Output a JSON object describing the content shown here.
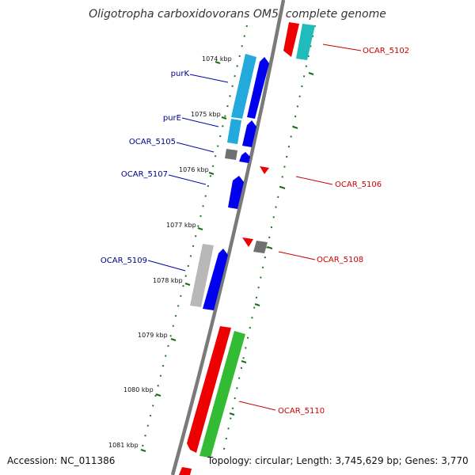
{
  "title": "Oligotropha carboxidovorans OM5, complete genome",
  "footer": {
    "accession_label": "Accession:",
    "accession": "NC_011386",
    "topology_text": "Topology: circular; Length: 3,745,629 bp; Genes: 3,770"
  },
  "kbp_labels": [
    "1074 kbp",
    "1075 kbp",
    "1076 kbp",
    "1077 kbp",
    "1078 kbp",
    "1079 kbp",
    "1080 kbp",
    "1081 kbp"
  ],
  "gene_labels": {
    "left": [
      "purK",
      "purE",
      "OCAR_5105",
      "OCAR_5107",
      "OCAR_5109"
    ],
    "right": [
      "OCAR_5102",
      "OCAR_5106",
      "OCAR_5108",
      "OCAR_5110"
    ]
  },
  "colors": {
    "backbone": "#808080",
    "forward_gene": "#0000ee",
    "reverse_gene": "#ee0000",
    "purine_gene": "#22aadd",
    "ocar5102_gene": "#22bbbb",
    "grey_gene": "#888888",
    "rna_gene": "#33bb33",
    "tick": "#1a6b1a",
    "left_label": "#00008b",
    "right_label": "#cc0000"
  }
}
